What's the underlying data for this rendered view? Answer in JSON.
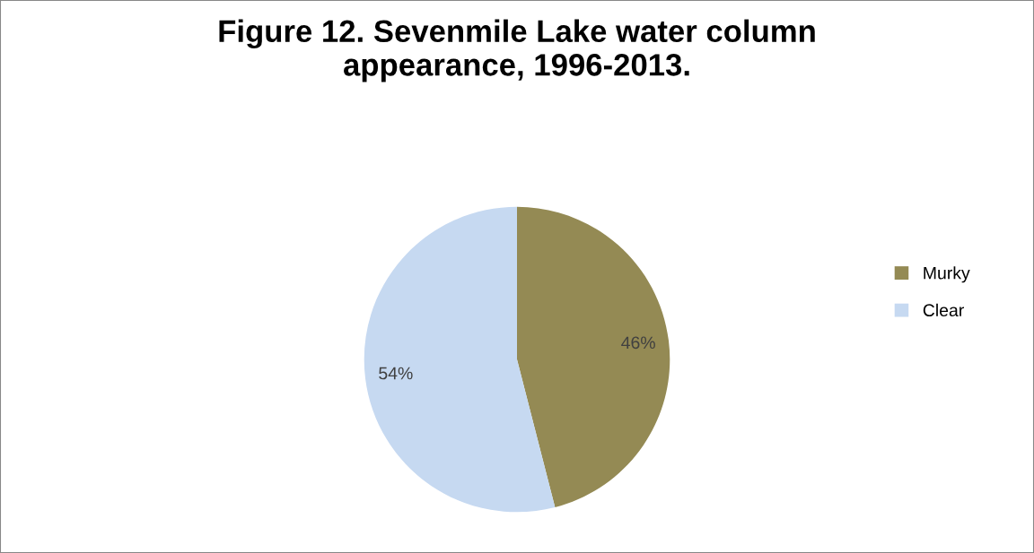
{
  "chart_data": {
    "type": "pie",
    "title": "Figure 12. Sevenmile Lake water column\nappearance, 1996-2013.",
    "categories": [
      "Murky",
      "Clear"
    ],
    "values": [
      46,
      54
    ],
    "colors": [
      "#948a54",
      "#c6d9f1"
    ],
    "value_labels": [
      "46%",
      "54%"
    ],
    "legend": "right"
  }
}
